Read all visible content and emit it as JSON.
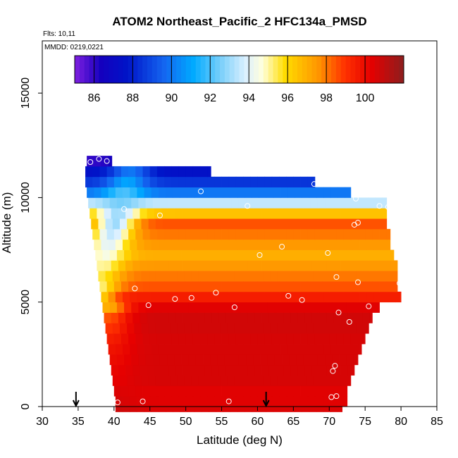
{
  "chart_data": {
    "type": "heatmap",
    "title": "ATOM2 Northeast_Pacific_2 HFC134a_PMSD",
    "flights_label": "Flts: 10,11",
    "date_label": "MMDD: 0219,0221",
    "xlabel": "Latitude (deg N)",
    "ylabel": "Altitude (m)",
    "xlim": [
      30,
      85
    ],
    "ylim": [
      0,
      17500
    ],
    "x_ticks": [
      30,
      35,
      40,
      45,
      50,
      55,
      60,
      65,
      70,
      75,
      80,
      85
    ],
    "y_ticks": [
      0,
      5000,
      10000,
      15000
    ],
    "colorbar": {
      "min": 85,
      "max": 102,
      "ticks": [
        86,
        88,
        90,
        92,
        94,
        96,
        98,
        100
      ]
    },
    "arrows_latitude": [
      34.7,
      61.2
    ],
    "altitude_bands": [
      {
        "alt": 0,
        "lat_min": 40.2,
        "lat_max": 71.8,
        "peak": 100.8,
        "bg": 100.5
      },
      {
        "alt": 250,
        "lat_min": 40.2,
        "lat_max": 72.5,
        "peak": 100.6,
        "bg": 100.4
      },
      {
        "alt": 750,
        "lat_min": 40.0,
        "lat_max": 72.5,
        "peak": 100.5,
        "bg": 100.4
      },
      {
        "alt": 1250,
        "lat_min": 39.8,
        "lat_max": 73.0,
        "peak": 100.3,
        "bg": 100.6
      },
      {
        "alt": 1750,
        "lat_min": 39.6,
        "lat_max": 73.5,
        "peak": 100.2,
        "bg": 100.6
      },
      {
        "alt": 2250,
        "lat_min": 39.4,
        "lat_max": 74.0,
        "peak": 100.0,
        "bg": 100.6
      },
      {
        "alt": 2750,
        "lat_min": 39.2,
        "lat_max": 74.5,
        "peak": 99.8,
        "bg": 100.6
      },
      {
        "alt": 3250,
        "lat_min": 39.0,
        "lat_max": 75.0,
        "peak": 99.5,
        "bg": 100.6
      },
      {
        "alt": 3750,
        "lat_min": 38.8,
        "lat_max": 75.5,
        "peak": 99.0,
        "bg": 100.7
      },
      {
        "alt": 4250,
        "lat_min": 38.6,
        "lat_max": 76.0,
        "peak": 98.5,
        "bg": 100.7
      },
      {
        "alt": 4750,
        "lat_min": 38.4,
        "lat_max": 77.0,
        "peak": 97.0,
        "bg": 100.4
      },
      {
        "alt": 5250,
        "lat_min": 38.2,
        "lat_max": 80.0,
        "peak": 95.5,
        "bg": 99.5
      },
      {
        "alt": 5750,
        "lat_min": 38.0,
        "lat_max": 79.5,
        "peak": 95.0,
        "bg": 98.5
      },
      {
        "alt": 6250,
        "lat_min": 37.8,
        "lat_max": 79.5,
        "peak": 95.5,
        "bg": 98.0
      },
      {
        "alt": 6750,
        "lat_min": 37.6,
        "lat_max": 79.5,
        "peak": 95.0,
        "bg": 97.5
      },
      {
        "alt": 7250,
        "lat_min": 37.4,
        "lat_max": 79.0,
        "peak": 94.5,
        "bg": 97.0
      },
      {
        "alt": 7750,
        "lat_min": 37.2,
        "lat_max": 78.5,
        "peak": 94.0,
        "bg": 97.5
      },
      {
        "alt": 8250,
        "lat_min": 37.0,
        "lat_max": 78.5,
        "peak": 93.5,
        "bg": 98.0
      },
      {
        "alt": 8750,
        "lat_min": 36.8,
        "lat_max": 78.0,
        "peak": 93.0,
        "bg": 98.5
      },
      {
        "alt": 9250,
        "lat_min": 36.6,
        "lat_max": 78.0,
        "peak": 93.0,
        "bg": 96.5
      },
      {
        "alt": 9750,
        "lat_min": 36.4,
        "lat_max": 78.0,
        "peak": 92.5,
        "bg": 93.5
      },
      {
        "alt": 10250,
        "lat_min": 36.2,
        "lat_max": 73.0,
        "peak": 92.0,
        "bg": 90.0
      },
      {
        "alt": 10750,
        "lat_min": 36.0,
        "lat_max": 68.0,
        "peak": 91.0,
        "bg": 88.5
      },
      {
        "alt": 11250,
        "lat_min": 36.0,
        "lat_max": 53.5,
        "peak": 90.0,
        "bg": 87.5
      },
      {
        "alt": 11750,
        "lat_min": 36.2,
        "lat_max": 39.7,
        "peak": 87.0,
        "bg": 86.0
      }
    ],
    "samples": [
      {
        "lat": 40.5,
        "alt": 200
      },
      {
        "lat": 44.0,
        "alt": 250
      },
      {
        "lat": 56.0,
        "alt": 250
      },
      {
        "lat": 70.3,
        "alt": 450
      },
      {
        "lat": 71.0,
        "alt": 500
      },
      {
        "lat": 70.5,
        "alt": 1700
      },
      {
        "lat": 70.8,
        "alt": 1950
      },
      {
        "lat": 72.8,
        "alt": 4050
      },
      {
        "lat": 71.3,
        "alt": 4500
      },
      {
        "lat": 75.5,
        "alt": 4800
      },
      {
        "lat": 44.8,
        "alt": 4850
      },
      {
        "lat": 56.8,
        "alt": 4750
      },
      {
        "lat": 48.5,
        "alt": 5150
      },
      {
        "lat": 50.8,
        "alt": 5200
      },
      {
        "lat": 54.2,
        "alt": 5450
      },
      {
        "lat": 64.3,
        "alt": 5300
      },
      {
        "lat": 66.2,
        "alt": 5100
      },
      {
        "lat": 42.9,
        "alt": 5650
      },
      {
        "lat": 71.0,
        "alt": 6200
      },
      {
        "lat": 74.0,
        "alt": 5950
      },
      {
        "lat": 79.8,
        "alt": 5900
      },
      {
        "lat": 60.3,
        "alt": 7250
      },
      {
        "lat": 63.4,
        "alt": 7650
      },
      {
        "lat": 69.8,
        "alt": 7350
      },
      {
        "lat": 46.4,
        "alt": 9150
      },
      {
        "lat": 41.4,
        "alt": 9450
      },
      {
        "lat": 58.6,
        "alt": 9600
      },
      {
        "lat": 73.5,
        "alt": 8700
      },
      {
        "lat": 74.0,
        "alt": 8800
      },
      {
        "lat": 77.0,
        "alt": 9600
      },
      {
        "lat": 78.2,
        "alt": 9550
      },
      {
        "lat": 73.7,
        "alt": 9950
      },
      {
        "lat": 52.1,
        "alt": 10300
      },
      {
        "lat": 67.9,
        "alt": 10650
      },
      {
        "lat": 36.7,
        "alt": 11700
      },
      {
        "lat": 37.9,
        "alt": 11850
      },
      {
        "lat": 39.0,
        "alt": 11750
      }
    ]
  }
}
